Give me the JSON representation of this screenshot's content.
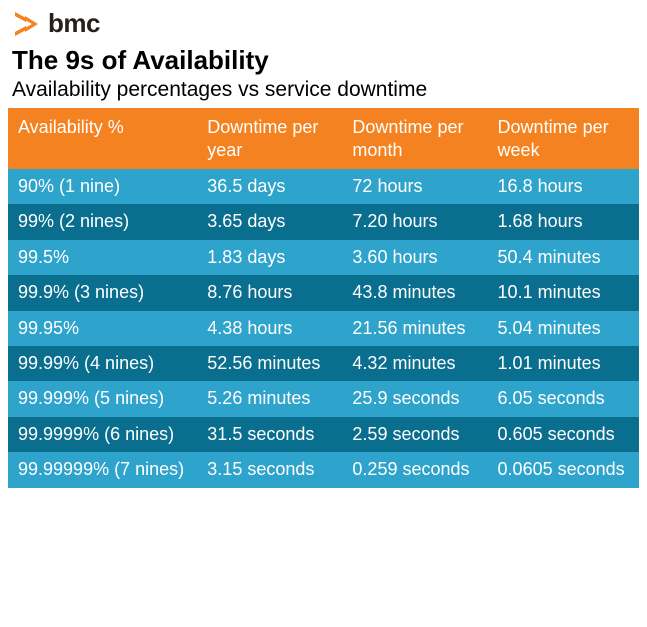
{
  "logo_text": "bmc",
  "logo_color": "#f58220",
  "title": "The 9s of Availability",
  "subtitle": "Availability percentages vs service downtime",
  "table": {
    "type": "table",
    "header_bg": "#f58220",
    "row_light_bg": "#2ea3cc",
    "row_dark_bg": "#0a6e8f",
    "text_color": "#ffffff",
    "columns": [
      "Availability %",
      "Downtime per year",
      "Downtime per month",
      "Downtime per week"
    ],
    "rows": [
      {
        "style": "light",
        "cells": [
          "90% (1 nine)",
          "36.5 days",
          "72 hours",
          "16.8 hours"
        ]
      },
      {
        "style": "dark",
        "cells": [
          "99% (2 nines)",
          "3.65 days",
          "7.20 hours",
          "1.68 hours"
        ]
      },
      {
        "style": "light",
        "cells": [
          "99.5%",
          "1.83 days",
          "3.60 hours",
          "50.4 minutes"
        ]
      },
      {
        "style": "dark",
        "cells": [
          "99.9% (3 nines)",
          "8.76 hours",
          "43.8 minutes",
          "10.1 minutes"
        ]
      },
      {
        "style": "light",
        "cells": [
          "99.95%",
          "4.38 hours",
          "21.56 minutes",
          "5.04 minutes"
        ]
      },
      {
        "style": "dark",
        "cells": [
          "99.99% (4 nines)",
          "52.56 minutes",
          "4.32 minutes",
          "1.01 minutes"
        ]
      },
      {
        "style": "light",
        "cells": [
          "99.999% (5 nines)",
          "5.26 minutes",
          "25.9 seconds",
          "6.05 seconds"
        ]
      },
      {
        "style": "dark",
        "cells": [
          "99.9999% (6 nines)",
          "31.5 seconds",
          "2.59 seconds",
          "0.605 seconds"
        ]
      },
      {
        "style": "light",
        "cells": [
          "99.99999% (7 nines)",
          "3.15 seconds",
          "0.259 seconds",
          "0.0605 seconds"
        ]
      }
    ]
  }
}
